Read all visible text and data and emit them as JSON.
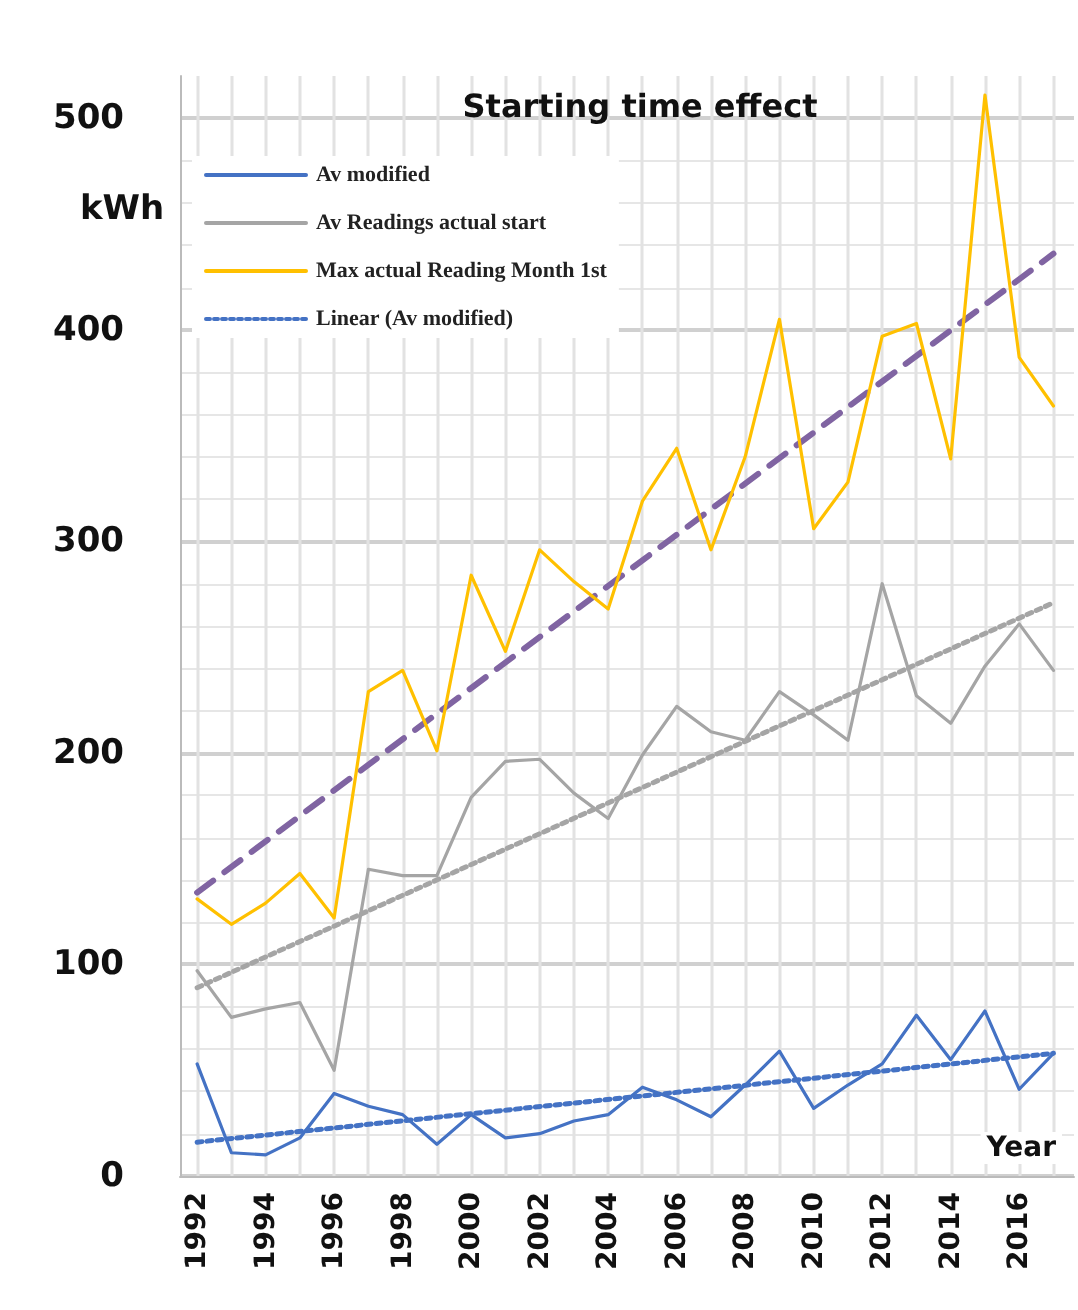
{
  "chart_data": {
    "type": "line",
    "title": "Starting time effect",
    "xlabel": "Year",
    "ylabel": "kWh",
    "x": [
      1992,
      1993,
      1994,
      1995,
      1996,
      1997,
      1998,
      1999,
      2000,
      2001,
      2002,
      2003,
      2004,
      2005,
      2006,
      2007,
      2008,
      2009,
      2010,
      2011,
      2012,
      2013,
      2014,
      2015,
      2016,
      2017
    ],
    "series": [
      {
        "name": "Av modified",
        "color": "#4472c4",
        "values": [
          53,
          11,
          10,
          18,
          39,
          33,
          29,
          15,
          29,
          18,
          20,
          26,
          29,
          42,
          36,
          28,
          43,
          59,
          32,
          43,
          53,
          76,
          55,
          78,
          41,
          58
        ]
      },
      {
        "name": "Av Readings actual start",
        "color": "#a5a5a5",
        "values": [
          97,
          75,
          79,
          82,
          50,
          145,
          142,
          142,
          179,
          196,
          197,
          181,
          169,
          199,
          222,
          210,
          206,
          229,
          218,
          206,
          280,
          227,
          214,
          241,
          261,
          239
        ]
      },
      {
        "name": "Max actual Reading Month 1st",
        "color": "#ffc000",
        "values": [
          131,
          119,
          129,
          143,
          122,
          229,
          239,
          201,
          284,
          248,
          296,
          281,
          268,
          319,
          344,
          296,
          340,
          405,
          306,
          328,
          397,
          403,
          339,
          511,
          387,
          364
        ]
      },
      {
        "name": "Linear (Av modified)",
        "color": "#4472c4",
        "line_style": "dotted",
        "values": [
          16,
          null,
          null,
          null,
          null,
          null,
          null,
          null,
          null,
          null,
          null,
          null,
          null,
          null,
          null,
          null,
          null,
          null,
          null,
          null,
          null,
          null,
          null,
          null,
          null,
          58
        ]
      },
      {
        "color": "#a5a5a5",
        "line_style": "dotted",
        "values": [
          89,
          null,
          null,
          null,
          null,
          null,
          null,
          null,
          null,
          null,
          null,
          null,
          null,
          null,
          null,
          null,
          null,
          null,
          null,
          null,
          null,
          null,
          null,
          null,
          null,
          271
        ]
      },
      {
        "color": "#8064a2",
        "line_style": "dashed",
        "values": [
          134,
          null,
          null,
          null,
          null,
          null,
          null,
          null,
          null,
          null,
          null,
          null,
          null,
          null,
          null,
          null,
          null,
          null,
          null,
          null,
          null,
          null,
          null,
          null,
          null,
          436
        ]
      }
    ],
    "xlim": [
      1991.5,
      2017.6
    ],
    "xticks": [
      1992,
      {
        "value": 1993,
        "label": null
      },
      1994,
      {
        "value": 1995,
        "label": null
      },
      1996,
      {
        "value": 1997,
        "label": null
      },
      1998,
      {
        "value": 1999,
        "label": null
      },
      2000,
      {
        "value": 2001,
        "label": null
      },
      2002,
      {
        "value": 2003,
        "label": null
      },
      2004,
      {
        "value": 2005,
        "label": null
      },
      2006,
      {
        "value": 2007,
        "label": null
      },
      2008,
      {
        "value": 2009,
        "label": null
      },
      2010,
      {
        "value": 2011,
        "label": null
      },
      2012,
      {
        "value": 2013,
        "label": null
      },
      2014,
      {
        "value": 2015,
        "label": null
      },
      2016,
      {
        "value": 2017,
        "label": null
      }
    ],
    "ylim": [
      0,
      520
    ],
    "yticks": [
      0,
      100,
      200,
      300,
      400,
      500
    ],
    "grid": true,
    "legend": "top left",
    "marker": "none",
    "line_style": "solid"
  }
}
